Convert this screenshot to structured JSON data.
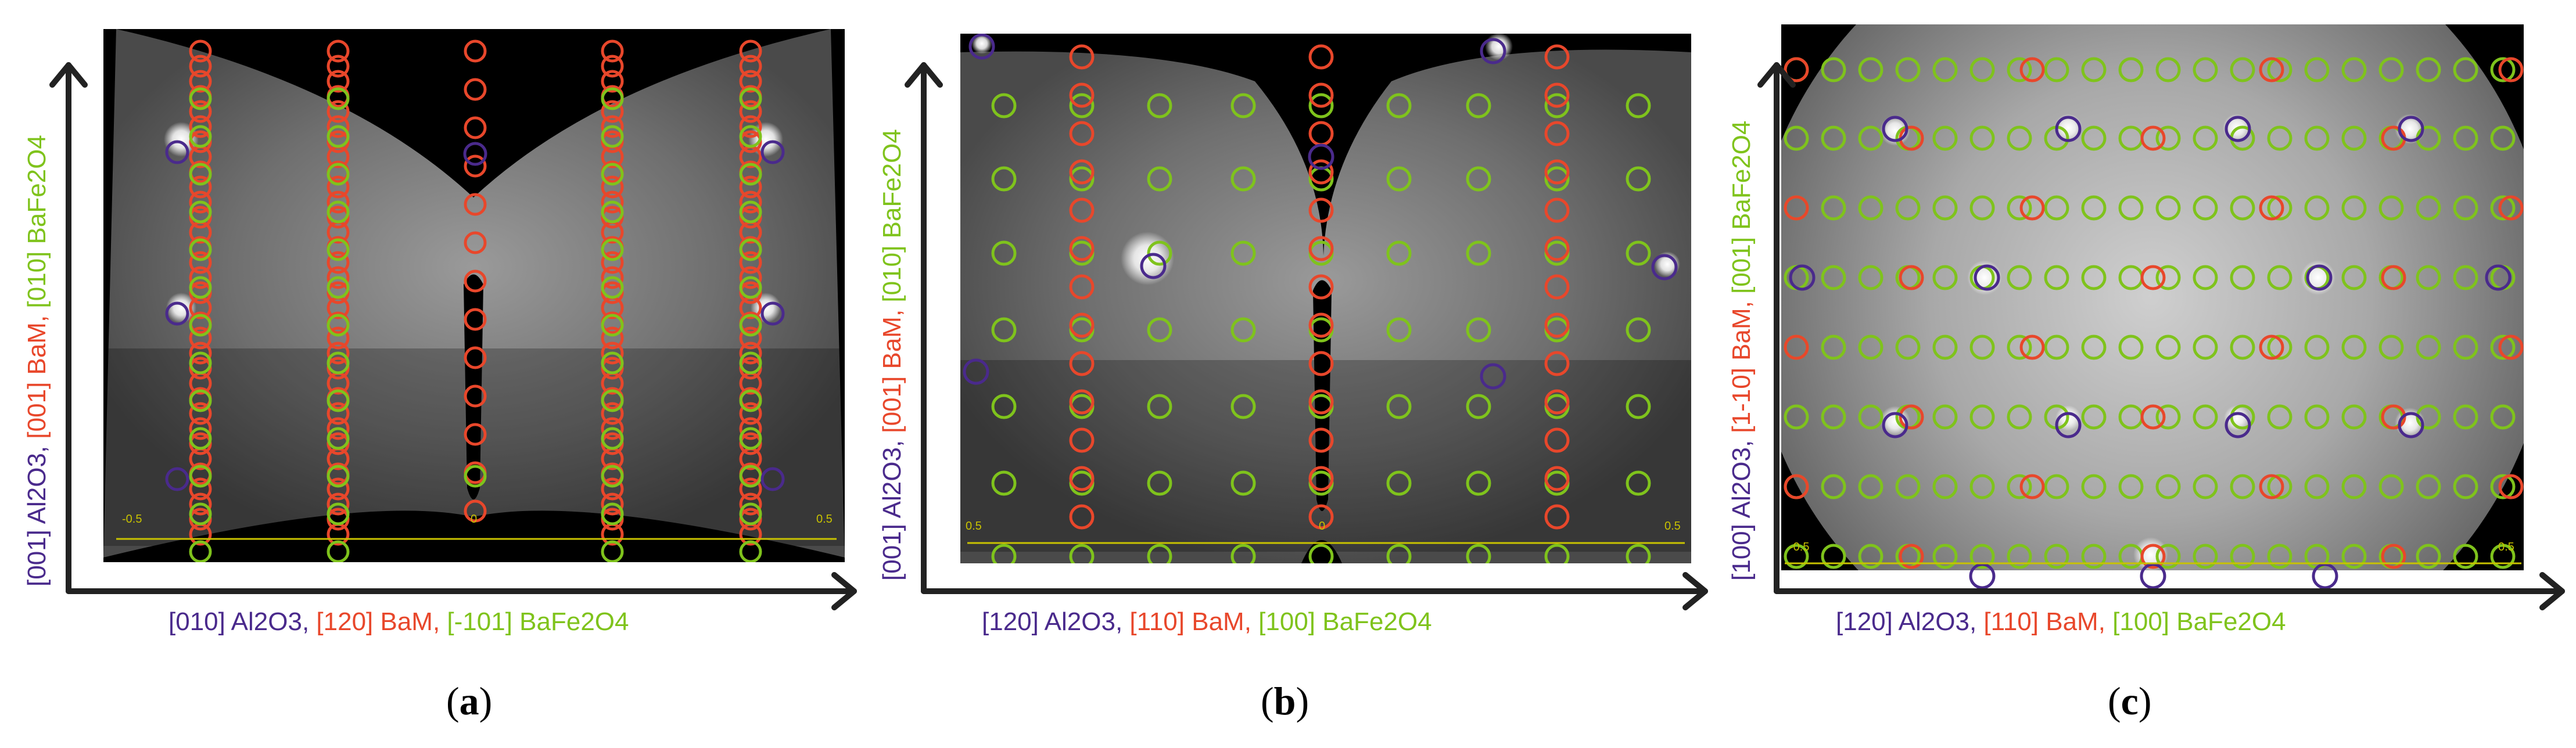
{
  "colors": {
    "al2o3": "#4a2a8c",
    "bam": "#e8472b",
    "bafe2o4": "#7fc31c",
    "axis": "#222222",
    "scale": "#c8c200"
  },
  "panels": [
    {
      "id": "a",
      "caption_letter": "a",
      "x_axis": [
        {
          "text": "[010] Al2O3, ",
          "color": "al2o3"
        },
        {
          "text": "[120] BaM, ",
          "color": "bam"
        },
        {
          "text": "[-101] BaFe2O4",
          "color": "bafe2o4"
        }
      ],
      "y_axis": [
        {
          "text": "[001] Al2O3, ",
          "color": "al2o3"
        },
        {
          "text": "[001] BaM, ",
          "color": "bam"
        },
        {
          "text": "[010] BaFe2O4",
          "color": "bafe2o4"
        }
      ],
      "scale_ticks": [
        "-0.5",
        "0",
        "0.5"
      ]
    },
    {
      "id": "b",
      "caption_letter": "b",
      "x_axis": [
        {
          "text": "[120] Al2O3, ",
          "color": "al2o3"
        },
        {
          "text": "[110] BaM, ",
          "color": "bam"
        },
        {
          "text": "[100] BaFe2O4",
          "color": "bafe2o4"
        }
      ],
      "y_axis": [
        {
          "text": "[001] Al2O3, ",
          "color": "al2o3"
        },
        {
          "text": "[001] BaM, ",
          "color": "bam"
        },
        {
          "text": "[010] BaFe2O4",
          "color": "bafe2o4"
        }
      ],
      "scale_ticks": [
        "0.5",
        "0",
        "0.5"
      ]
    },
    {
      "id": "c",
      "caption_letter": "c",
      "x_axis": [
        {
          "text": "[120] Al2O3, ",
          "color": "al2o3"
        },
        {
          "text": "[110] BaM, ",
          "color": "bam"
        },
        {
          "text": "[100] BaFe2O4",
          "color": "bafe2o4"
        }
      ],
      "y_axis": [
        {
          "text": "[100] Al2O3, ",
          "color": "al2o3"
        },
        {
          "text": "[1-10] BaM, ",
          "color": "bam"
        },
        {
          "text": "[001] BaFe2O4",
          "color": "bafe2o4"
        }
      ],
      "scale_ticks": [
        "-0.5",
        "0.5"
      ]
    }
  ]
}
